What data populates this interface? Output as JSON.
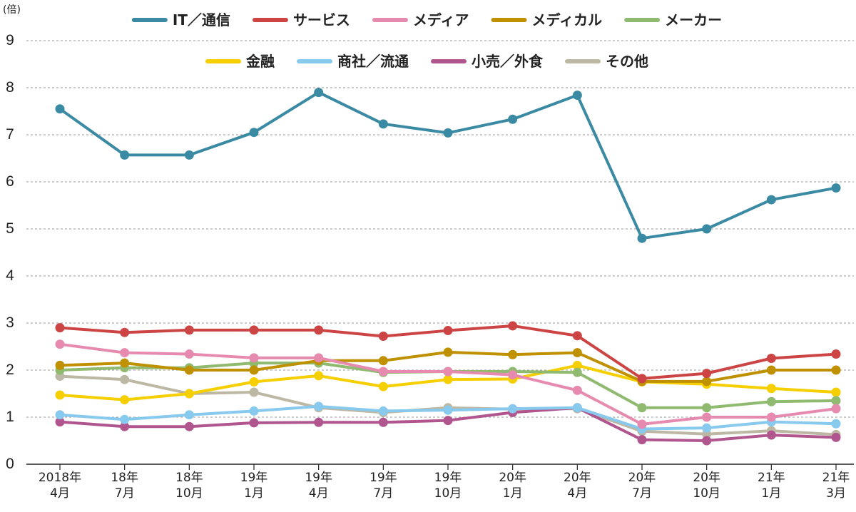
{
  "chart_data": {
    "type": "line",
    "unit_label": "(倍)",
    "categories": [
      [
        "2018年",
        "4月"
      ],
      [
        "18年",
        "7月"
      ],
      [
        "18年",
        "10月"
      ],
      [
        "19年",
        "1月"
      ],
      [
        "19年",
        "4月"
      ],
      [
        "19年",
        "7月"
      ],
      [
        "19年",
        "10月"
      ],
      [
        "20年",
        "1月"
      ],
      [
        "20年",
        "4月"
      ],
      [
        "20年",
        "7月"
      ],
      [
        "20年",
        "10月"
      ],
      [
        "21年",
        "1月"
      ],
      [
        "21年",
        "3月"
      ]
    ],
    "ylim": [
      0,
      9
    ],
    "yticks": [
      0,
      1,
      2,
      3,
      4,
      5,
      6,
      7,
      8,
      9
    ],
    "grid": "horizontal-dashed",
    "legend_position": "top",
    "series": [
      {
        "name": "IT／通信",
        "color": "#3a8aa3",
        "values": [
          7.55,
          6.57,
          6.57,
          7.05,
          7.9,
          7.23,
          7.04,
          7.33,
          7.84,
          4.8,
          5.0,
          5.62,
          5.87
        ]
      },
      {
        "name": "サービス",
        "color": "#cc4444",
        "values": [
          2.9,
          2.8,
          2.85,
          2.85,
          2.85,
          2.72,
          2.84,
          2.94,
          2.73,
          1.82,
          1.93,
          2.25,
          2.34
        ]
      },
      {
        "name": "メディア",
        "color": "#e68ab0",
        "values": [
          2.55,
          2.37,
          2.34,
          2.26,
          2.26,
          1.97,
          1.97,
          1.9,
          1.57,
          0.85,
          1.0,
          1.0,
          1.18
        ]
      },
      {
        "name": "メディカル",
        "color": "#bf9000",
        "values": [
          2.1,
          2.15,
          2.0,
          2.0,
          2.2,
          2.2,
          2.38,
          2.33,
          2.37,
          1.76,
          1.76,
          2.0,
          2.0
        ]
      },
      {
        "name": "メーカー",
        "color": "#8fba6f",
        "values": [
          2.0,
          2.05,
          2.05,
          2.15,
          2.15,
          1.95,
          1.97,
          1.97,
          1.95,
          1.2,
          1.2,
          1.33,
          1.35
        ]
      },
      {
        "name": "金融",
        "color": "#f5cf00",
        "values": [
          1.47,
          1.37,
          1.5,
          1.75,
          1.88,
          1.65,
          1.8,
          1.81,
          2.1,
          1.75,
          1.7,
          1.61,
          1.53
        ]
      },
      {
        "name": "商社／流通",
        "color": "#88c9ee",
        "values": [
          1.05,
          0.95,
          1.05,
          1.13,
          1.23,
          1.13,
          1.15,
          1.18,
          1.2,
          0.75,
          0.77,
          0.9,
          0.86
        ]
      },
      {
        "name": "小売／外食",
        "color": "#b1558f",
        "values": [
          0.9,
          0.8,
          0.8,
          0.88,
          0.89,
          0.89,
          0.93,
          1.1,
          1.2,
          0.52,
          0.5,
          0.62,
          0.57
        ]
      },
      {
        "name": "その他",
        "color": "#bdb8a4",
        "values": [
          1.87,
          1.8,
          1.5,
          1.53,
          1.2,
          1.1,
          1.2,
          1.17,
          1.18,
          0.7,
          0.64,
          0.71,
          0.63
        ]
      }
    ]
  }
}
